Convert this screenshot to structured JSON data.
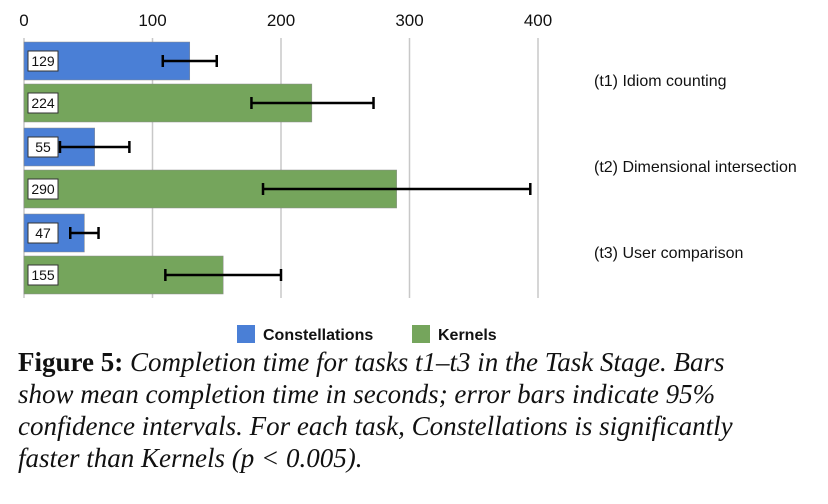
{
  "chart_data": {
    "type": "bar",
    "orientation": "horizontal",
    "categories": [
      "(t1) Idiom counting",
      "(t2) Dimensional intersection",
      "(t3) User comparison"
    ],
    "series": [
      {
        "name": "Constellations",
        "color": "#4a7fd6",
        "values": [
          129,
          55,
          47
        ],
        "error_low": [
          108,
          28,
          36
        ],
        "error_high": [
          150,
          82,
          58
        ]
      },
      {
        "name": "Kernels",
        "color": "#75a55c",
        "values": [
          224,
          290,
          155
        ],
        "error_low": [
          177,
          186,
          110
        ],
        "error_high": [
          272,
          394,
          200
        ]
      }
    ],
    "xticks": [
      0,
      100,
      200,
      300,
      400
    ],
    "xlim": [
      0,
      400
    ],
    "xaxis_position": "top",
    "grid": true,
    "legend_position": "bottom",
    "data_labels": true
  },
  "caption": {
    "figure_label": "Figure 5:",
    "text_lines": [
      " Completion time for tasks t1–t3 in the Task Stage. Bars",
      "show mean completion time in seconds; error bars indicate 95%",
      "confidence intervals. For each task, Constellations is significantly",
      "faster than Kernels (p < 0.005)."
    ]
  }
}
